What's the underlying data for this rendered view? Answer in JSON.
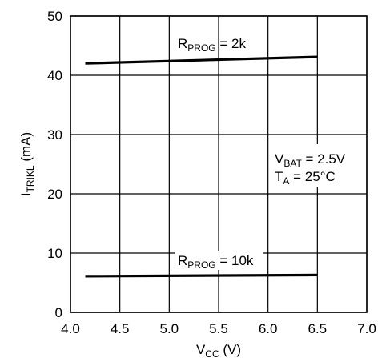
{
  "chart_data": {
    "type": "line",
    "xlabel": {
      "main": "V",
      "sub": "CC",
      "unit": " (V)"
    },
    "ylabel": {
      "main": "I",
      "sub": "TRIKL",
      "unit": " (mA)"
    },
    "xlim": [
      4.0,
      7.0
    ],
    "ylim": [
      0,
      50
    ],
    "xticks": [
      4.0,
      4.5,
      5.0,
      5.5,
      6.0,
      6.5,
      7.0
    ],
    "xtick_labels": [
      "4.0",
      "4.5",
      "5.0",
      "5.5",
      "6.0",
      "6.5",
      "7.0"
    ],
    "yticks": [
      0,
      10,
      20,
      30,
      40,
      50
    ],
    "ytick_labels": [
      "0",
      "10",
      "20",
      "30",
      "40",
      "50"
    ],
    "grid": true,
    "series": [
      {
        "name": {
          "main": "R",
          "sub": "PROG",
          "rest": " = 2k"
        },
        "x": [
          4.15,
          6.5
        ],
        "y": [
          42.0,
          43.1
        ]
      },
      {
        "name": {
          "main": "R",
          "sub": "PROG",
          "rest": " = 10k"
        },
        "x": [
          4.15,
          6.5
        ],
        "y": [
          6.1,
          6.3
        ]
      }
    ],
    "annotations": [
      {
        "main": "V",
        "sub": "BAT",
        "rest": " = 2.5V"
      },
      {
        "main": "T",
        "sub": "A",
        "rest": " = 25°C"
      }
    ]
  }
}
